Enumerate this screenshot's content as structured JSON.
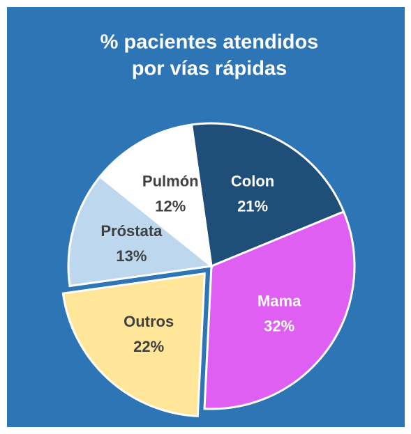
{
  "chart_data": {
    "type": "pie",
    "title": [
      "% pacientes atendidos",
      "por vías rápidas"
    ],
    "categories": [
      "Colon",
      "Mama",
      "Outros",
      "Próstata",
      "Pulmón"
    ],
    "values": [
      21,
      32,
      22,
      13,
      12
    ],
    "value_labels": [
      "21%",
      "32%",
      "22%",
      "13%",
      "12%"
    ],
    "colors": [
      "#1f4e79",
      "#df5ff2",
      "#ffe699",
      "#bdd7ee",
      "#ffffff"
    ],
    "label_colors": [
      "#ffffff",
      "#ffffff",
      "#404040",
      "#404040",
      "#404040"
    ],
    "explode": [
      0,
      0,
      0.07,
      0,
      0
    ],
    "startangle": -8,
    "background": "#2e75b6"
  }
}
